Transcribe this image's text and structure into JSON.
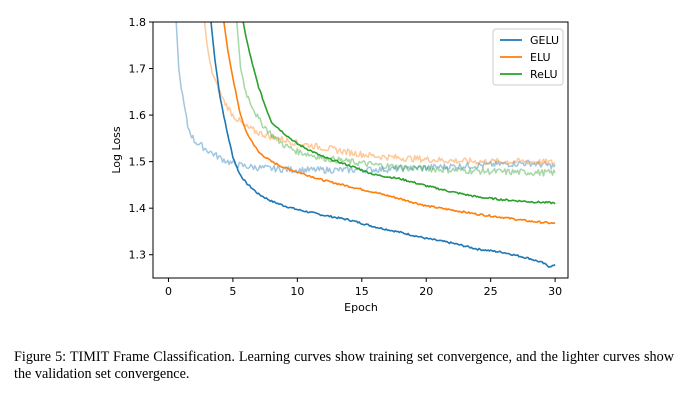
{
  "chart_data": {
    "type": "line",
    "title": "",
    "xlabel": "Epoch",
    "ylabel": "Log Loss",
    "xlim": [
      -1.2,
      31.0
    ],
    "ylim": [
      1.25,
      1.8
    ],
    "x_ticks": [
      0,
      5,
      10,
      15,
      20,
      25,
      30
    ],
    "x_tick_labels": [
      "0",
      "5",
      "10",
      "15",
      "20",
      "25",
      "30"
    ],
    "y_ticks": [
      1.3,
      1.4,
      1.5,
      1.6,
      1.7,
      1.8
    ],
    "y_tick_labels": [
      "1.3",
      "1.4",
      "1.5",
      "1.6",
      "1.7",
      "1.8"
    ],
    "grid": false,
    "legend_position": "top-right",
    "legend": [
      "GELU",
      "ELU",
      "ReLU"
    ],
    "series": [
      {
        "name": "GELU",
        "kind": "train",
        "color": "#1f77b4",
        "x": [
          3.3,
          3.6,
          4.0,
          4.5,
          5.0,
          5.5,
          6.0,
          7.0,
          8.0,
          9.0,
          10.0,
          12.0,
          14.0,
          16.0,
          18.0,
          20.0,
          22.0,
          24.0,
          26.0,
          28.0,
          29.0,
          29.5,
          30.0
        ],
        "y": [
          1.8,
          1.72,
          1.64,
          1.57,
          1.51,
          1.475,
          1.455,
          1.43,
          1.415,
          1.405,
          1.397,
          1.385,
          1.375,
          1.36,
          1.348,
          1.335,
          1.325,
          1.312,
          1.305,
          1.292,
          1.283,
          1.275,
          1.277
        ]
      },
      {
        "name": "ELU",
        "kind": "train",
        "color": "#ff7f0e",
        "x": [
          4.3,
          4.6,
          5.0,
          5.5,
          6.0,
          7.0,
          8.0,
          9.0,
          10.0,
          12.0,
          14.0,
          16.0,
          18.0,
          20.0,
          22.0,
          24.0,
          26.0,
          28.0,
          30.0
        ],
        "y": [
          1.8,
          1.74,
          1.68,
          1.61,
          1.565,
          1.52,
          1.5,
          1.487,
          1.478,
          1.46,
          1.447,
          1.434,
          1.42,
          1.405,
          1.396,
          1.387,
          1.38,
          1.372,
          1.367
        ]
      },
      {
        "name": "ReLU",
        "kind": "train",
        "color": "#2ca02c",
        "x": [
          5.8,
          6.0,
          6.5,
          7.0,
          7.5,
          8.0,
          9.0,
          10.0,
          12.0,
          14.0,
          16.0,
          18.0,
          20.0,
          22.0,
          24.0,
          26.0,
          28.0,
          30.0
        ],
        "y": [
          1.8,
          1.77,
          1.71,
          1.66,
          1.62,
          1.585,
          1.56,
          1.538,
          1.51,
          1.492,
          1.472,
          1.463,
          1.448,
          1.435,
          1.424,
          1.418,
          1.414,
          1.411
        ]
      },
      {
        "name": "GELU",
        "kind": "validation",
        "color": "#1f77b4",
        "x": [
          0.6,
          0.8,
          1.0,
          1.5,
          2.0,
          3.0,
          4.0,
          5.0,
          6.0,
          7.0,
          8.0,
          10.0,
          12.0,
          14.0,
          16.0,
          18.0,
          20.0,
          22.0,
          24.0,
          26.0,
          28.0,
          30.0
        ],
        "y": [
          1.8,
          1.7,
          1.655,
          1.575,
          1.545,
          1.525,
          1.508,
          1.495,
          1.49,
          1.487,
          1.485,
          1.482,
          1.482,
          1.482,
          1.483,
          1.485,
          1.487,
          1.49,
          1.492,
          1.495,
          1.497,
          1.49
        ]
      },
      {
        "name": "ELU",
        "kind": "validation",
        "color": "#ff7f0e",
        "x": [
          2.8,
          3.0,
          3.3,
          3.8,
          4.3,
          5.0,
          6.0,
          7.0,
          8.0,
          10.0,
          12.0,
          14.0,
          16.0,
          18.0,
          20.0,
          22.0,
          24.0,
          26.0,
          28.0,
          30.0
        ],
        "y": [
          1.8,
          1.75,
          1.7,
          1.66,
          1.63,
          1.6,
          1.575,
          1.562,
          1.553,
          1.54,
          1.53,
          1.52,
          1.512,
          1.508,
          1.505,
          1.502,
          1.5,
          1.5,
          1.5,
          1.498
        ]
      },
      {
        "name": "ReLU",
        "kind": "validation",
        "color": "#2ca02c",
        "x": [
          5.3,
          5.6,
          6.0,
          7.0,
          8.0,
          9.0,
          10.0,
          12.0,
          14.0,
          16.0,
          18.0,
          20.0,
          22.0,
          24.0,
          26.0,
          28.0,
          30.0
        ],
        "y": [
          1.8,
          1.7,
          1.65,
          1.59,
          1.558,
          1.535,
          1.522,
          1.508,
          1.5,
          1.493,
          1.488,
          1.485,
          1.482,
          1.48,
          1.478,
          1.477,
          1.476
        ]
      }
    ]
  },
  "caption": {
    "text": "Figure 5: TIMIT Frame Classification. Learning curves show training set convergence, and the lighter curves show the validation set convergence."
  }
}
